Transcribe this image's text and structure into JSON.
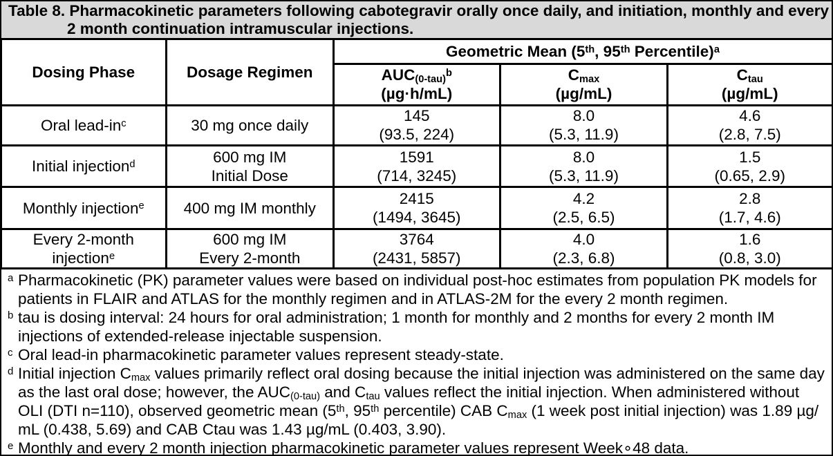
{
  "title": {
    "lines": [
      "Table 8. Pharmacokinetic parameters following cabotegravir orally once daily, and initiation, monthly and every",
      "2 month continuation intramuscular injections."
    ]
  },
  "table": {
    "header": {
      "dosing_phase": "Dosing Phase",
      "dosage_regimen": "Dosage Regimen",
      "geometric_mean": "Geometric Mean (5^th^, 95^th^ Percentile)^a^",
      "auc": [
        "AUC~(0-tau)~^b^",
        "(µg·h/mL)"
      ],
      "cmax": [
        "C~max~",
        "(µg/mL)"
      ],
      "ctau": [
        "C~tau~",
        "(µg/mL)"
      ]
    },
    "rows": [
      {
        "phase": [
          "Oral lead-in^c^"
        ],
        "regimen": [
          "30 mg once daily"
        ],
        "auc": [
          "145",
          "(93.5, 224)"
        ],
        "cmax": [
          "8.0",
          "(5.3, 11.9)"
        ],
        "ctau": [
          "4.6",
          "(2.8, 7.5)"
        ]
      },
      {
        "phase": [
          "Initial injection^d^"
        ],
        "regimen": [
          "600 mg IM",
          "Initial Dose"
        ],
        "auc": [
          "1591",
          "(714, 3245)"
        ],
        "cmax": [
          "8.0",
          "(5.3, 11.9)"
        ],
        "ctau": [
          "1.5",
          "(0.65, 2.9)"
        ]
      },
      {
        "phase": [
          "Monthly injection^e^"
        ],
        "regimen": [
          "400 mg IM monthly"
        ],
        "auc": [
          "2415",
          "(1494, 3645)"
        ],
        "cmax": [
          "4.2",
          "(2.5, 6.5)"
        ],
        "ctau": [
          "2.8",
          "(1.7, 4.6)"
        ]
      },
      {
        "phase": [
          "Every 2-month",
          "injection^e^"
        ],
        "regimen": [
          "600 mg IM",
          "Every 2-month"
        ],
        "auc": [
          "3764",
          "(2431, 5857)"
        ],
        "cmax": [
          "4.0",
          "(2.3, 6.8)"
        ],
        "ctau": [
          "1.6",
          "(0.8, 3.0)"
        ]
      }
    ]
  },
  "footnotes": [
    {
      "marker": "a",
      "lines": [
        "Pharmacokinetic (PK) parameter values were based on individual post-hoc estimates from population PK models for",
        "patients in FLAIR and ATLAS for the monthly regimen and in ATLAS-2M for the every 2 month regimen."
      ]
    },
    {
      "marker": "b",
      "lines": [
        "tau is dosing interval: 24 hours for oral administration; 1 month for monthly and 2 months for every 2 month IM",
        "injections of extended-release injectable suspension."
      ]
    },
    {
      "marker": "c",
      "lines": [
        "Oral lead-in pharmacokinetic parameter values represent steady-state."
      ]
    },
    {
      "marker": "d",
      "lines": [
        "Initial injection C~max~ values primarily reflect oral dosing because the initial injection was administered on the same day",
        "as the last oral dose; however, the AUC~(0-tau)~ and C~tau~ values reflect the initial injection. When administered without",
        "OLI (DTI n=110), observed geometric mean (5^th^, 95^th^ percentile) CAB C~max~ (1 week post initial injection) was 1.89 µg/",
        "mL (0.438, 5.69) and CAB Ctau was 1.43 µg/mL (0.403, 3.90)."
      ]
    },
    {
      "marker": "e",
      "lines": [
        "Monthly and every 2 month injection pharmacokinetic parameter values represent Week∘48 data."
      ]
    }
  ],
  "colors": {
    "title_bar_background": "#d8d8d8",
    "border": "#000000",
    "text": "#000000",
    "table_background": "#ffffff"
  }
}
